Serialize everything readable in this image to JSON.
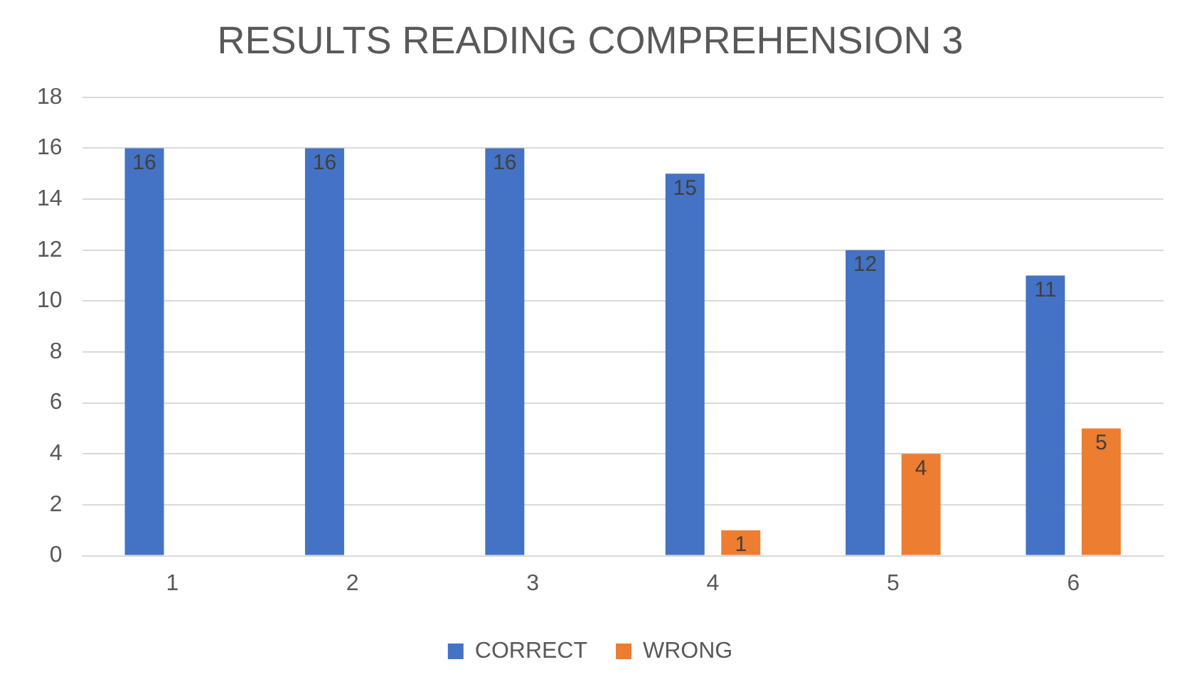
{
  "chart_data": {
    "type": "bar",
    "title": "RESULTS READING COMPREHENSION 3",
    "categories": [
      "1",
      "2",
      "3",
      "4",
      "5",
      "6"
    ],
    "series": [
      {
        "name": "CORRECT",
        "color": "#4472c4",
        "values": [
          16,
          16,
          16,
          15,
          12,
          11
        ],
        "value_labels": [
          "16",
          "16",
          "16",
          "15",
          "12",
          "11"
        ]
      },
      {
        "name": "WRONG",
        "color": "#ed7d31",
        "values": [
          0,
          0,
          0,
          1,
          4,
          5
        ],
        "value_labels": [
          null,
          null,
          null,
          "1",
          "4",
          "5"
        ]
      }
    ],
    "ylim": [
      0,
      18
    ],
    "yticks": [
      0,
      2,
      4,
      6,
      8,
      10,
      12,
      14,
      16,
      18
    ],
    "grid": "y",
    "legend": "bottom"
  }
}
